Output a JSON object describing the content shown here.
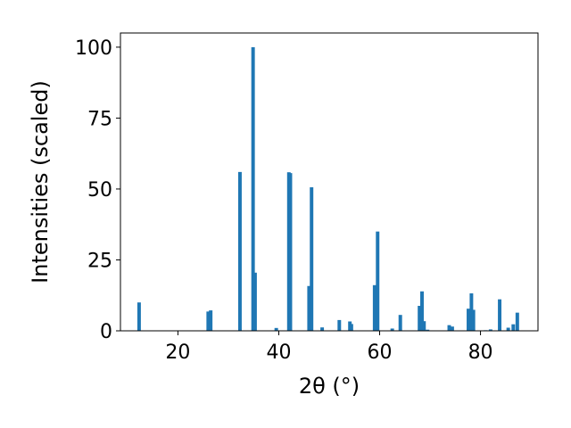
{
  "chart_data": {
    "type": "bar",
    "xlabel": "2θ (°)",
    "ylabel": "Intensities (scaled)",
    "xlim": [
      8.6,
      91.4
    ],
    "ylim": [
      0,
      105
    ],
    "xticks": [
      20,
      40,
      60,
      80
    ],
    "yticks": [
      0,
      25,
      50,
      75,
      100
    ],
    "bar_width": 0.7,
    "color": "#1f77b4",
    "grid": false,
    "x": [
      12.3,
      26.0,
      26.5,
      32.3,
      34.9,
      35.3,
      39.5,
      42.0,
      42.3,
      46.0,
      46.5,
      48.6,
      52.0,
      54.1,
      54.4,
      59.0,
      59.6,
      62.5,
      64.1,
      67.9,
      68.4,
      68.8,
      69.5,
      73.8,
      74.4,
      77.6,
      78.2,
      78.6,
      81.0,
      82.0,
      83.8,
      85.5,
      86.5,
      87.3
    ],
    "values": [
      10.0,
      6.8,
      7.2,
      56.0,
      100.0,
      20.5,
      1.0,
      55.9,
      55.6,
      15.8,
      50.6,
      1.2,
      3.8,
      3.3,
      2.4,
      16.1,
      35.0,
      0.8,
      5.6,
      8.8,
      13.9,
      3.4,
      0.4,
      2.0,
      1.5,
      7.8,
      13.2,
      7.4,
      0.2,
      0.5,
      11.1,
      1.1,
      2.3,
      6.4
    ]
  }
}
